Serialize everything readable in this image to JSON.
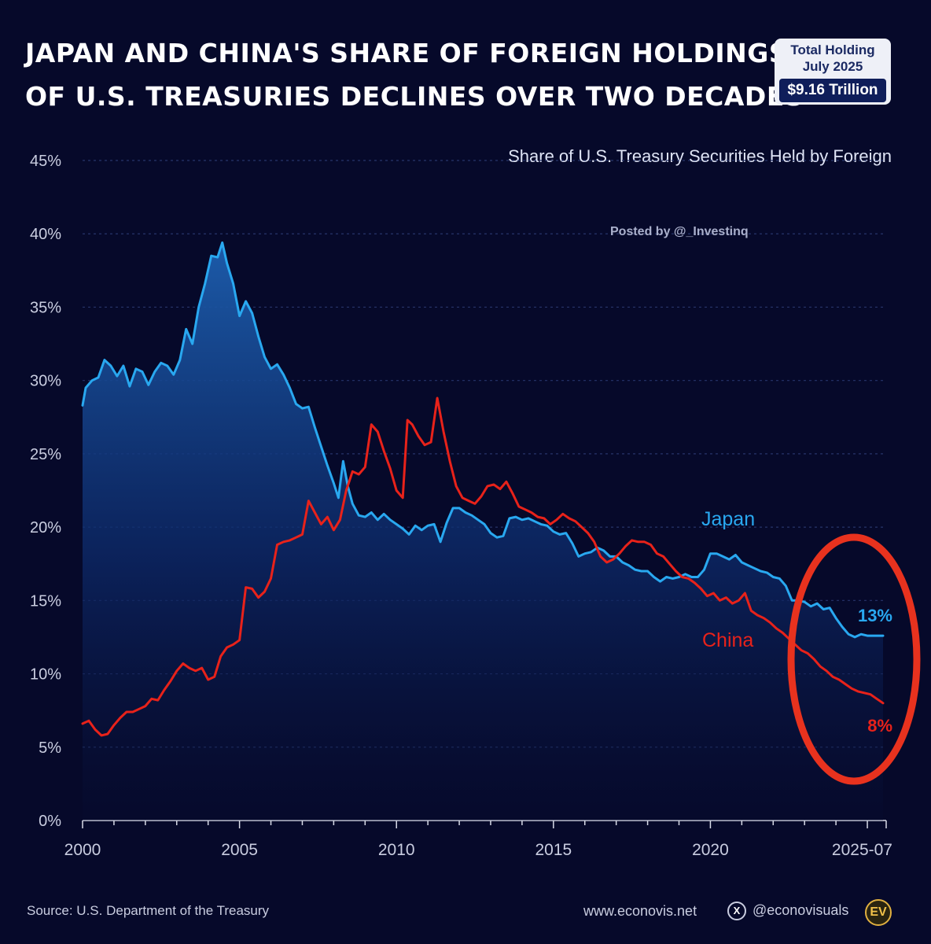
{
  "header": {
    "title_line1": "Japan and China's Share of Foreign Holdings",
    "title_line2": "of U.S. Treasuries Declines Over Two Decades",
    "badge_line1": "Total Holding",
    "badge_line2": "July 2025",
    "badge_value": "$9.16 Trillion"
  },
  "chart_subtitle": "Share of U.S. Treasury Securities Held by Foreign",
  "watermark": "Posted by @_Investinq",
  "footer": {
    "source": "Source: U.S. Department of the Treasury",
    "website": "www.econovis.net",
    "x_icon_glyph": "X",
    "handle": "@econovisuals",
    "logo_text": "EV"
  },
  "colors": {
    "background": "#06092a",
    "japan": "#29a8f0",
    "china": "#e8221a",
    "highlight_ellipse": "#e8321e",
    "grid": "#27346a"
  },
  "chart_data": {
    "type": "line",
    "title": "Share of U.S. Treasury Securities Held by Foreign",
    "xlabel": "",
    "ylabel": "",
    "xlim": [
      2000,
      2025.6
    ],
    "ylim": [
      0,
      45
    ],
    "y_ticks": [
      0,
      5,
      10,
      15,
      20,
      25,
      30,
      35,
      40,
      45
    ],
    "y_tick_labels": [
      "0%",
      "5%",
      "10%",
      "15%",
      "20%",
      "25%",
      "30%",
      "35%",
      "40%",
      "45%"
    ],
    "x_ticks": [
      2000,
      2005,
      2010,
      2015,
      2020,
      2025.5
    ],
    "x_tick_labels": [
      "2000",
      "2005",
      "2010",
      "2015",
      "2020",
      "2025-07"
    ],
    "grid": true,
    "series": [
      {
        "name": "Japan",
        "label": "Japan",
        "end_label": "13%",
        "area_fill": true,
        "points": [
          [
            2000,
            28.3
          ],
          [
            2000.1,
            29.5
          ],
          [
            2000.3,
            30.0
          ],
          [
            2000.5,
            30.2
          ],
          [
            2000.7,
            31.4
          ],
          [
            2000.9,
            31.0
          ],
          [
            2001.1,
            30.3
          ],
          [
            2001.3,
            31.0
          ],
          [
            2001.5,
            29.6
          ],
          [
            2001.7,
            30.8
          ],
          [
            2001.9,
            30.6
          ],
          [
            2002.1,
            29.7
          ],
          [
            2002.3,
            30.6
          ],
          [
            2002.5,
            31.2
          ],
          [
            2002.7,
            31.0
          ],
          [
            2002.9,
            30.4
          ],
          [
            2003.1,
            31.4
          ],
          [
            2003.3,
            33.5
          ],
          [
            2003.5,
            32.5
          ],
          [
            2003.7,
            35.0
          ],
          [
            2003.9,
            36.6
          ],
          [
            2004.1,
            38.5
          ],
          [
            2004.3,
            38.4
          ],
          [
            2004.45,
            39.4
          ],
          [
            2004.6,
            38.0
          ],
          [
            2004.8,
            36.6
          ],
          [
            2005.0,
            34.4
          ],
          [
            2005.2,
            35.4
          ],
          [
            2005.4,
            34.6
          ],
          [
            2005.6,
            33.0
          ],
          [
            2005.8,
            31.6
          ],
          [
            2006.0,
            30.8
          ],
          [
            2006.2,
            31.1
          ],
          [
            2006.4,
            30.4
          ],
          [
            2006.6,
            29.5
          ],
          [
            2006.8,
            28.4
          ],
          [
            2007.0,
            28.1
          ],
          [
            2007.2,
            28.2
          ],
          [
            2007.4,
            26.8
          ],
          [
            2007.6,
            25.5
          ],
          [
            2007.8,
            24.2
          ],
          [
            2008.0,
            23.0
          ],
          [
            2008.15,
            22.0
          ],
          [
            2008.3,
            24.5
          ],
          [
            2008.45,
            22.8
          ],
          [
            2008.6,
            21.6
          ],
          [
            2008.8,
            20.8
          ],
          [
            2009.0,
            20.7
          ],
          [
            2009.2,
            21.0
          ],
          [
            2009.4,
            20.5
          ],
          [
            2009.6,
            20.9
          ],
          [
            2009.8,
            20.5
          ],
          [
            2010.0,
            20.2
          ],
          [
            2010.2,
            19.9
          ],
          [
            2010.4,
            19.5
          ],
          [
            2010.6,
            20.1
          ],
          [
            2010.8,
            19.8
          ],
          [
            2011.0,
            20.1
          ],
          [
            2011.2,
            20.2
          ],
          [
            2011.4,
            19.0
          ],
          [
            2011.6,
            20.3
          ],
          [
            2011.8,
            21.3
          ],
          [
            2012.0,
            21.3
          ],
          [
            2012.2,
            21.0
          ],
          [
            2012.4,
            20.8
          ],
          [
            2012.6,
            20.5
          ],
          [
            2012.8,
            20.2
          ],
          [
            2013.0,
            19.6
          ],
          [
            2013.2,
            19.3
          ],
          [
            2013.4,
            19.4
          ],
          [
            2013.6,
            20.6
          ],
          [
            2013.8,
            20.7
          ],
          [
            2014.0,
            20.5
          ],
          [
            2014.2,
            20.6
          ],
          [
            2014.4,
            20.4
          ],
          [
            2014.6,
            20.2
          ],
          [
            2014.8,
            20.1
          ],
          [
            2015.0,
            19.7
          ],
          [
            2015.2,
            19.5
          ],
          [
            2015.4,
            19.6
          ],
          [
            2015.6,
            18.9
          ],
          [
            2015.8,
            18.0
          ],
          [
            2016.0,
            18.2
          ],
          [
            2016.2,
            18.3
          ],
          [
            2016.4,
            18.6
          ],
          [
            2016.6,
            18.4
          ],
          [
            2016.8,
            18.0
          ],
          [
            2017.0,
            18.0
          ],
          [
            2017.2,
            17.6
          ],
          [
            2017.4,
            17.4
          ],
          [
            2017.6,
            17.1
          ],
          [
            2017.8,
            17.0
          ],
          [
            2018.0,
            17.0
          ],
          [
            2018.2,
            16.6
          ],
          [
            2018.4,
            16.3
          ],
          [
            2018.6,
            16.6
          ],
          [
            2018.8,
            16.5
          ],
          [
            2019.0,
            16.6
          ],
          [
            2019.2,
            16.8
          ],
          [
            2019.4,
            16.6
          ],
          [
            2019.6,
            16.6
          ],
          [
            2019.8,
            17.1
          ],
          [
            2020.0,
            18.2
          ],
          [
            2020.2,
            18.2
          ],
          [
            2020.4,
            18.0
          ],
          [
            2020.6,
            17.8
          ],
          [
            2020.8,
            18.1
          ],
          [
            2021.0,
            17.6
          ],
          [
            2021.2,
            17.4
          ],
          [
            2021.4,
            17.2
          ],
          [
            2021.6,
            17.0
          ],
          [
            2021.8,
            16.9
          ],
          [
            2022.0,
            16.6
          ],
          [
            2022.2,
            16.5
          ],
          [
            2022.4,
            16.0
          ],
          [
            2022.6,
            15.0
          ],
          [
            2022.8,
            15.0
          ],
          [
            2023.0,
            14.9
          ],
          [
            2023.2,
            14.6
          ],
          [
            2023.4,
            14.8
          ],
          [
            2023.6,
            14.4
          ],
          [
            2023.8,
            14.5
          ],
          [
            2024.0,
            13.8
          ],
          [
            2024.2,
            13.2
          ],
          [
            2024.4,
            12.7
          ],
          [
            2024.6,
            12.5
          ],
          [
            2024.8,
            12.7
          ],
          [
            2025.0,
            12.6
          ],
          [
            2025.2,
            12.6
          ],
          [
            2025.5,
            12.6
          ]
        ]
      },
      {
        "name": "China",
        "label": "China",
        "end_label": "8%",
        "area_fill": false,
        "points": [
          [
            2000,
            6.6
          ],
          [
            2000.2,
            6.8
          ],
          [
            2000.4,
            6.2
          ],
          [
            2000.6,
            5.8
          ],
          [
            2000.8,
            5.9
          ],
          [
            2001.0,
            6.5
          ],
          [
            2001.2,
            7.0
          ],
          [
            2001.4,
            7.4
          ],
          [
            2001.6,
            7.4
          ],
          [
            2001.8,
            7.6
          ],
          [
            2002.0,
            7.8
          ],
          [
            2002.2,
            8.3
          ],
          [
            2002.4,
            8.2
          ],
          [
            2002.6,
            8.9
          ],
          [
            2002.8,
            9.5
          ],
          [
            2003.0,
            10.2
          ],
          [
            2003.2,
            10.7
          ],
          [
            2003.4,
            10.4
          ],
          [
            2003.6,
            10.2
          ],
          [
            2003.8,
            10.4
          ],
          [
            2004.0,
            9.6
          ],
          [
            2004.2,
            9.8
          ],
          [
            2004.4,
            11.2
          ],
          [
            2004.6,
            11.8
          ],
          [
            2004.8,
            12.0
          ],
          [
            2005.0,
            12.3
          ],
          [
            2005.2,
            15.9
          ],
          [
            2005.4,
            15.8
          ],
          [
            2005.6,
            15.2
          ],
          [
            2005.8,
            15.6
          ],
          [
            2006.0,
            16.5
          ],
          [
            2006.2,
            18.8
          ],
          [
            2006.4,
            19.0
          ],
          [
            2006.6,
            19.1
          ],
          [
            2006.8,
            19.3
          ],
          [
            2007.0,
            19.5
          ],
          [
            2007.2,
            21.8
          ],
          [
            2007.4,
            21.0
          ],
          [
            2007.6,
            20.2
          ],
          [
            2007.8,
            20.7
          ],
          [
            2008.0,
            19.8
          ],
          [
            2008.2,
            20.5
          ],
          [
            2008.4,
            22.5
          ],
          [
            2008.6,
            23.8
          ],
          [
            2008.8,
            23.6
          ],
          [
            2009.0,
            24.1
          ],
          [
            2009.2,
            27.0
          ],
          [
            2009.4,
            26.5
          ],
          [
            2009.6,
            25.2
          ],
          [
            2009.8,
            24.0
          ],
          [
            2010.0,
            22.5
          ],
          [
            2010.2,
            22.0
          ],
          [
            2010.35,
            27.3
          ],
          [
            2010.5,
            27.0
          ],
          [
            2010.7,
            26.2
          ],
          [
            2010.9,
            25.6
          ],
          [
            2011.1,
            25.8
          ],
          [
            2011.3,
            28.8
          ],
          [
            2011.5,
            26.5
          ],
          [
            2011.7,
            24.5
          ],
          [
            2011.9,
            22.8
          ],
          [
            2012.1,
            22.0
          ],
          [
            2012.3,
            21.8
          ],
          [
            2012.5,
            21.6
          ],
          [
            2012.7,
            22.1
          ],
          [
            2012.9,
            22.8
          ],
          [
            2013.1,
            22.9
          ],
          [
            2013.3,
            22.6
          ],
          [
            2013.5,
            23.1
          ],
          [
            2013.7,
            22.3
          ],
          [
            2013.9,
            21.4
          ],
          [
            2014.1,
            21.2
          ],
          [
            2014.3,
            21.0
          ],
          [
            2014.5,
            20.7
          ],
          [
            2014.7,
            20.6
          ],
          [
            2014.9,
            20.2
          ],
          [
            2015.1,
            20.5
          ],
          [
            2015.3,
            20.9
          ],
          [
            2015.5,
            20.6
          ],
          [
            2015.7,
            20.4
          ],
          [
            2015.9,
            20.0
          ],
          [
            2016.1,
            19.6
          ],
          [
            2016.3,
            19.0
          ],
          [
            2016.5,
            18.0
          ],
          [
            2016.7,
            17.6
          ],
          [
            2016.9,
            17.8
          ],
          [
            2017.1,
            18.2
          ],
          [
            2017.3,
            18.7
          ],
          [
            2017.5,
            19.1
          ],
          [
            2017.7,
            19.0
          ],
          [
            2017.9,
            19.0
          ],
          [
            2018.1,
            18.8
          ],
          [
            2018.3,
            18.2
          ],
          [
            2018.5,
            18.0
          ],
          [
            2018.7,
            17.5
          ],
          [
            2018.9,
            17.0
          ],
          [
            2019.1,
            16.6
          ],
          [
            2019.3,
            16.5
          ],
          [
            2019.5,
            16.2
          ],
          [
            2019.7,
            15.8
          ],
          [
            2019.9,
            15.3
          ],
          [
            2020.1,
            15.5
          ],
          [
            2020.3,
            15.0
          ],
          [
            2020.5,
            15.2
          ],
          [
            2020.7,
            14.8
          ],
          [
            2020.9,
            15.0
          ],
          [
            2021.1,
            15.5
          ],
          [
            2021.3,
            14.3
          ],
          [
            2021.5,
            14.0
          ],
          [
            2021.7,
            13.8
          ],
          [
            2021.9,
            13.5
          ],
          [
            2022.1,
            13.1
          ],
          [
            2022.3,
            12.8
          ],
          [
            2022.5,
            12.4
          ],
          [
            2022.7,
            12.0
          ],
          [
            2022.9,
            11.6
          ],
          [
            2023.1,
            11.4
          ],
          [
            2023.3,
            11.0
          ],
          [
            2023.5,
            10.5
          ],
          [
            2023.7,
            10.2
          ],
          [
            2023.9,
            9.8
          ],
          [
            2024.1,
            9.6
          ],
          [
            2024.3,
            9.3
          ],
          [
            2024.5,
            9.0
          ],
          [
            2024.7,
            8.8
          ],
          [
            2024.9,
            8.7
          ],
          [
            2025.1,
            8.6
          ],
          [
            2025.3,
            8.3
          ],
          [
            2025.5,
            8.0
          ]
        ]
      }
    ],
    "annotations": [
      "Japan",
      "China",
      "13%",
      "8%"
    ]
  }
}
